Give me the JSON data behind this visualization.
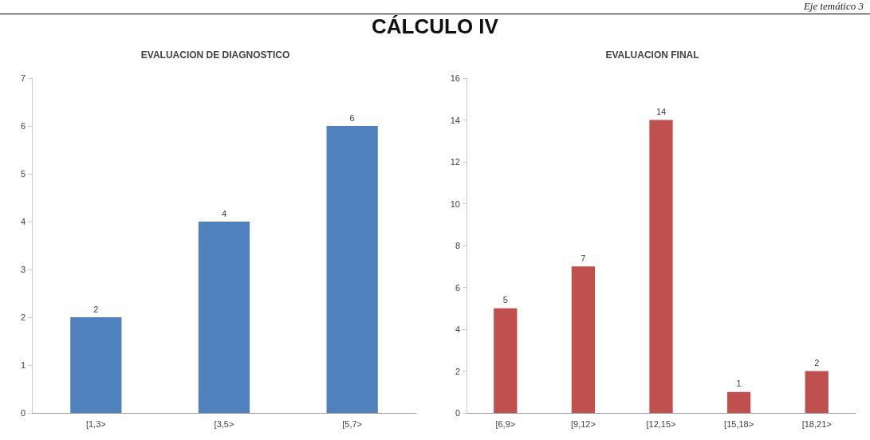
{
  "chart_data": [
    {
      "type": "bar",
      "title": "EVALUACION DE DIAGNOSTICO",
      "annotations": [
        "Eje temático 3",
        "CÁLCULO IV"
      ],
      "categories": [
        "[1,3>",
        "[3,5>",
        "[5,7>"
      ],
      "series": [
        {
          "color": "#4f81bd",
          "values": [
            2,
            4,
            6
          ]
        }
      ],
      "ylim": [
        0,
        7
      ],
      "yticks": [
        0,
        1,
        2,
        3,
        4,
        5,
        6,
        7
      ],
      "grid": false,
      "data_labels": true
    },
    {
      "type": "bar",
      "title": "EVALUACION FINAL",
      "categories": [
        "[6,9>",
        "[9,12>",
        "[12,15>",
        "[15,18>",
        "[18,21>"
      ],
      "series": [
        {
          "color": "#c0504d",
          "values": [
            5,
            7,
            14,
            1,
            2
          ]
        }
      ],
      "ylim": [
        0,
        16
      ],
      "yticks": [
        0,
        2,
        4,
        6,
        8,
        10,
        12,
        14,
        16
      ],
      "grid": false,
      "data_labels": true
    }
  ]
}
